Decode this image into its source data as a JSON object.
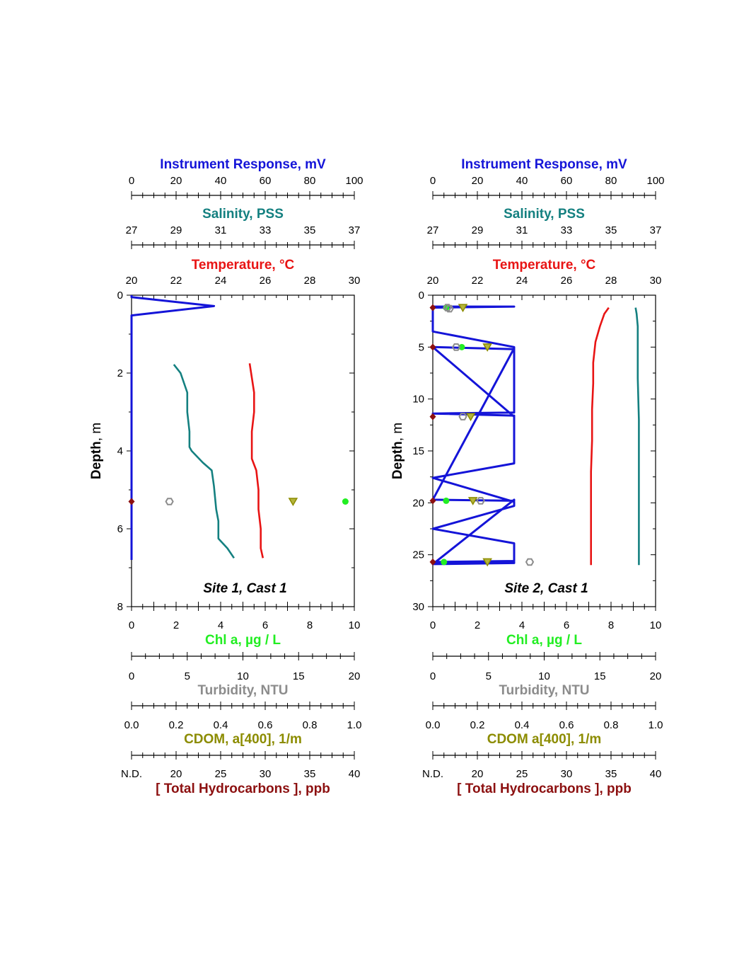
{
  "colors": {
    "instrument": "#1414d8",
    "salinity": "#148080",
    "temperature": "#e81414",
    "chl": "#22ee22",
    "turbidity": "#8c8c8c",
    "cdom": "#8c8c00",
    "thc": "#8c1010"
  },
  "chart_data": [
    {
      "type": "line",
      "title": "Site 1, Cast 1",
      "y_axis": {
        "label": "Depth",
        "unit": "m",
        "range": [
          0,
          8
        ],
        "reversed": true,
        "ticks": [
          "0",
          "2",
          "4",
          "6",
          "8"
        ]
      },
      "top_axes": [
        {
          "id": "instrument",
          "label": "Instrument Response",
          "unit": "mV",
          "range": [
            0,
            100
          ],
          "ticks": [
            "0",
            "20",
            "40",
            "60",
            "80",
            "100"
          ]
        },
        {
          "id": "salinity",
          "label": "Salinity",
          "unit": "PSS",
          "range": [
            27,
            37
          ],
          "ticks": [
            "27",
            "29",
            "31",
            "33",
            "35",
            "37"
          ]
        },
        {
          "id": "temperature",
          "label": "Temperature",
          "unit": "°C",
          "range": [
            20,
            30
          ],
          "ticks": [
            "20",
            "22",
            "24",
            "26",
            "28",
            "30"
          ]
        }
      ],
      "bottom_axes": [
        {
          "id": "chl",
          "label": "Chl a",
          "unit": "µg / L",
          "range": [
            0,
            10
          ],
          "ticks": [
            "0",
            "2",
            "4",
            "6",
            "8",
            "10"
          ]
        },
        {
          "id": "turbidity",
          "label": "Turbidity",
          "unit": "NTU",
          "range": [
            0,
            20
          ],
          "ticks": [
            "0",
            "5",
            "10",
            "15",
            "20"
          ]
        },
        {
          "id": "cdom",
          "label": "CDOM, a[400]",
          "unit": "1/m",
          "range": [
            0,
            1
          ],
          "ticks": [
            "0.0",
            "0.2",
            "0.4",
            "0.6",
            "0.8",
            "1.0"
          ]
        },
        {
          "id": "thc",
          "label": "[ Total Hydrocarbons ]",
          "unit": "ppb",
          "range": [
            15,
            40
          ],
          "ticks": [
            "N.D.",
            "20",
            "25",
            "30",
            "35",
            "40"
          ]
        }
      ],
      "series": [
        {
          "axis": "instrument",
          "kind": "line",
          "x": [
            0,
            0,
            37,
            0,
            0
          ],
          "y": [
            0,
            0.05,
            0.28,
            0.52,
            6.8
          ]
        },
        {
          "axis": "salinity",
          "kind": "line",
          "x": [
            28.9,
            29.2,
            29.5,
            29.5,
            29.6,
            29.6,
            29.7,
            30.2,
            30.6,
            30.7,
            30.8,
            30.9,
            30.9,
            31.3,
            31.6
          ],
          "y": [
            1.78,
            2.0,
            2.5,
            3.0,
            3.5,
            3.9,
            4.0,
            4.3,
            4.5,
            4.9,
            5.5,
            5.8,
            6.25,
            6.5,
            6.75
          ]
        },
        {
          "axis": "temperature",
          "kind": "line",
          "x": [
            25.3,
            25.5,
            25.5,
            25.4,
            25.4,
            25.6,
            25.7,
            25.7,
            25.8,
            25.8,
            25.9
          ],
          "y": [
            1.75,
            2.5,
            3.0,
            3.5,
            4.2,
            4.5,
            5.0,
            5.5,
            6.0,
            6.5,
            6.75
          ]
        },
        {
          "axis": "chl",
          "kind": "point",
          "shape": "circle",
          "x": [
            9.6
          ],
          "y": [
            5.3
          ]
        },
        {
          "axis": "turbidity",
          "kind": "point",
          "shape": "hex",
          "x": [
            3.4
          ],
          "y": [
            5.3
          ]
        },
        {
          "axis": "cdom",
          "kind": "point",
          "shape": "triangle",
          "x": [
            0.725
          ],
          "y": [
            5.3
          ]
        },
        {
          "axis": "thc",
          "kind": "point",
          "shape": "diamond",
          "x": [
            15
          ],
          "y": [
            5.3
          ]
        }
      ]
    },
    {
      "type": "line",
      "title": "Site 2, Cast 1",
      "y_axis": {
        "label": "Depth",
        "unit": "m",
        "range": [
          0,
          30
        ],
        "reversed": true,
        "ticks": [
          "0",
          "5",
          "10",
          "15",
          "20",
          "25",
          "30"
        ]
      },
      "top_axes": [
        {
          "id": "instrument",
          "label": "Instrument Response",
          "unit": "mV",
          "range": [
            0,
            100
          ],
          "ticks": [
            "0",
            "20",
            "40",
            "60",
            "80",
            "100"
          ]
        },
        {
          "id": "salinity",
          "label": "Salinity",
          "unit": "PSS",
          "range": [
            27,
            37
          ],
          "ticks": [
            "27",
            "29",
            "31",
            "33",
            "35",
            "37"
          ]
        },
        {
          "id": "temperature",
          "label": "Temperature",
          "unit": "°C",
          "range": [
            20,
            30
          ],
          "ticks": [
            "20",
            "22",
            "24",
            "26",
            "28",
            "30"
          ]
        }
      ],
      "bottom_axes": [
        {
          "id": "chl",
          "label": "Chl a",
          "unit": "µg / L",
          "range": [
            0,
            10
          ],
          "ticks": [
            "0",
            "2",
            "4",
            "6",
            "8",
            "10"
          ]
        },
        {
          "id": "turbidity",
          "label": "Turbidity",
          "unit": "NTU",
          "range": [
            0,
            20
          ],
          "ticks": [
            "0",
            "5",
            "10",
            "15",
            "20"
          ]
        },
        {
          "id": "cdom",
          "label": "CDOM a[400]",
          "unit": "1/m",
          "range": [
            0,
            1
          ],
          "ticks": [
            "0.0",
            "0.2",
            "0.4",
            "0.6",
            "0.8",
            "1.0"
          ]
        },
        {
          "id": "thc",
          "label": "[ Total Hydrocarbons ]",
          "unit": "ppb",
          "range": [
            15,
            40
          ],
          "ticks": [
            "N.D.",
            "20",
            "25",
            "30",
            "35",
            "40"
          ]
        }
      ],
      "series": [
        {
          "axis": "instrument",
          "kind": "line",
          "x": [
            0,
            36.5,
            0,
            0,
            36.5,
            36.5,
            0,
            36.5,
            36.5,
            0,
            36.5,
            36.5,
            0,
            36.5,
            36.5,
            0,
            36.5,
            36.5,
            0,
            36.5,
            36.5,
            0,
            36.5,
            36.5,
            0,
            36.5,
            36.5
          ],
          "y": [
            1.1,
            1.1,
            1.2,
            3.5,
            5.0,
            11.3,
            11.4,
            11.6,
            16.2,
            17.6,
            19.9,
            20.3,
            22.5,
            23.9,
            25.6,
            25.7,
            25.7,
            25.8,
            25.9,
            19.7,
            19.8,
            19.7,
            5.1,
            5.2,
            5.0,
            11.7,
            11.8
          ]
        },
        {
          "axis": "salinity",
          "kind": "line",
          "x": [
            36.1,
            36.15,
            36.2,
            36.2,
            36.2,
            36.25,
            36.25,
            36.25,
            36.25,
            36.25,
            36.25
          ],
          "y": [
            1.2,
            1.8,
            3.0,
            5.0,
            8.0,
            12.0,
            15.0,
            18.0,
            21.0,
            24.0,
            26.0
          ]
        },
        {
          "axis": "temperature",
          "kind": "line",
          "x": [
            27.9,
            27.7,
            27.5,
            27.3,
            27.2,
            27.2,
            27.15,
            27.15,
            27.1,
            27.1,
            27.1,
            27.1
          ],
          "y": [
            1.2,
            1.8,
            3.0,
            4.5,
            6.5,
            8.5,
            11.0,
            14.0,
            17.0,
            20.0,
            23.0,
            26.0
          ]
        },
        {
          "axis": "chl",
          "kind": "point",
          "shape": "circle",
          "x": [
            0.6,
            1.3,
            0.6,
            0.5
          ],
          "y": [
            1.2,
            5.0,
            19.8,
            25.7
          ]
        },
        {
          "axis": "turbidity",
          "kind": "point",
          "shape": "hex",
          "x": [
            1.3,
            2.1,
            2.7,
            4.3,
            8.7,
            1.5
          ],
          "y": [
            1.2,
            5.0,
            11.7,
            19.8,
            25.7,
            1.3
          ]
        },
        {
          "axis": "cdom",
          "kind": "point",
          "shape": "triangle",
          "x": [
            0.135,
            0.245,
            0.17,
            0.18,
            0.245
          ],
          "y": [
            1.2,
            5.0,
            11.7,
            19.8,
            25.7
          ]
        },
        {
          "axis": "thc",
          "kind": "point",
          "shape": "diamond",
          "x": [
            15,
            15,
            15,
            15,
            15
          ],
          "y": [
            1.2,
            5.0,
            11.7,
            19.8,
            25.7
          ]
        }
      ]
    }
  ]
}
